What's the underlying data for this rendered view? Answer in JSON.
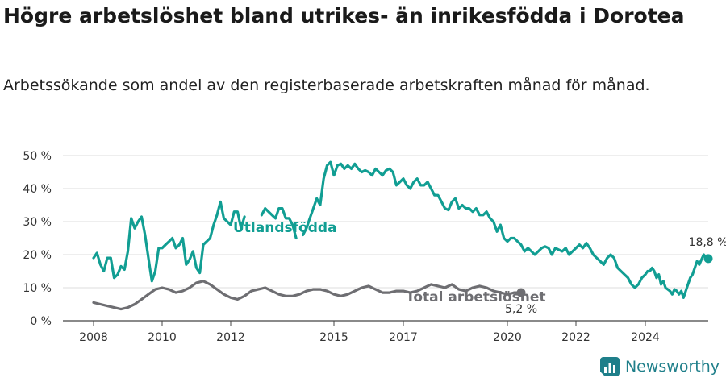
{
  "header": {
    "title": "Högre arbetslöshet bland utrikes- än inrikesfödda i Dorotea",
    "subtitle": "Arbetssökande som andel av den registerbaserade arbetskraften månad för månad."
  },
  "brand": {
    "name": "Newsworthy",
    "icon": "newsworthy-logo-icon",
    "color": "#1f7f8a"
  },
  "chart_data": {
    "type": "line",
    "title": "Högre arbetslöshet bland utrikes- än inrikesfödda i Dorotea",
    "subtitle": "Arbetssökande som andel av den registerbaserade arbetskraften månad för månad.",
    "xlabel": "",
    "ylabel": "",
    "xlim": [
      2007.6,
      2025.8
    ],
    "ylim": [
      0,
      50
    ],
    "x_ticks": [
      2008,
      2010,
      2012,
      2015,
      2017,
      2020,
      2022,
      2024
    ],
    "x_tick_labels": [
      "2008",
      "2010",
      "2012",
      "2015",
      "2017",
      "2020",
      "2022",
      "2024"
    ],
    "y_ticks": [
      0,
      10,
      20,
      30,
      40,
      50
    ],
    "y_tick_labels": [
      "0 %",
      "10 %",
      "20 %",
      "30 %",
      "40 %",
      "50 %"
    ],
    "grid": true,
    "series": [
      {
        "name": "Utlandsfödda",
        "color": "#119e93",
        "end_label": "18,8 %",
        "segments": [
          [
            [
              2008.0,
              19
            ],
            [
              2008.1,
              20.5
            ],
            [
              2008.2,
              17
            ],
            [
              2008.3,
              15
            ],
            [
              2008.4,
              19
            ],
            [
              2008.5,
              19
            ],
            [
              2008.6,
              13
            ],
            [
              2008.7,
              14
            ],
            [
              2008.8,
              16.5
            ],
            [
              2008.9,
              15.5
            ],
            [
              2009.0,
              21
            ],
            [
              2009.1,
              31
            ],
            [
              2009.2,
              28
            ],
            [
              2009.3,
              30
            ],
            [
              2009.4,
              31.5
            ],
            [
              2009.5,
              26
            ],
            [
              2009.6,
              19
            ],
            [
              2009.7,
              12
            ],
            [
              2009.8,
              15
            ],
            [
              2009.9,
              22
            ],
            [
              2010.0,
              22
            ],
            [
              2010.1,
              23
            ],
            [
              2010.2,
              24
            ],
            [
              2010.3,
              25
            ],
            [
              2010.4,
              22
            ],
            [
              2010.5,
              23
            ],
            [
              2010.6,
              25
            ],
            [
              2010.7,
              17
            ],
            [
              2010.8,
              18.5
            ],
            [
              2010.9,
              21
            ],
            [
              2011.0,
              16
            ],
            [
              2011.1,
              14.5
            ],
            [
              2011.2,
              23
            ],
            [
              2011.3,
              24
            ],
            [
              2011.4,
              25
            ],
            [
              2011.5,
              29
            ],
            [
              2011.6,
              32
            ],
            [
              2011.7,
              36
            ],
            [
              2011.8,
              31
            ],
            [
              2011.9,
              30
            ],
            [
              2012.0,
              29
            ],
            [
              2012.1,
              33
            ],
            [
              2012.2,
              33
            ],
            [
              2012.3,
              28
            ],
            [
              2012.4,
              31.5
            ]
          ],
          [
            [
              2012.9,
              32
            ],
            [
              2013.0,
              34
            ],
            [
              2013.1,
              33
            ],
            [
              2013.2,
              32
            ],
            [
              2013.3,
              31
            ],
            [
              2013.4,
              34
            ],
            [
              2013.5,
              34
            ],
            [
              2013.6,
              31
            ],
            [
              2013.7,
              31
            ],
            [
              2013.8,
              29
            ],
            [
              2013.9,
              25
            ]
          ],
          [
            [
              2014.1,
              26
            ],
            [
              2014.2,
              28
            ],
            [
              2014.3,
              31
            ],
            [
              2014.4,
              34
            ],
            [
              2014.5,
              37
            ],
            [
              2014.6,
              35
            ],
            [
              2014.7,
              43
            ],
            [
              2014.8,
              47
            ],
            [
              2014.9,
              48
            ],
            [
              2015.0,
              44
            ],
            [
              2015.1,
              47
            ],
            [
              2015.2,
              47.5
            ],
            [
              2015.3,
              46
            ],
            [
              2015.4,
              47
            ],
            [
              2015.5,
              46
            ],
            [
              2015.6,
              47.5
            ],
            [
              2015.7,
              46
            ],
            [
              2015.8,
              45
            ],
            [
              2015.9,
              45.5
            ],
            [
              2016.0,
              45
            ],
            [
              2016.1,
              44
            ],
            [
              2016.2,
              46
            ],
            [
              2016.3,
              45
            ],
            [
              2016.4,
              44
            ],
            [
              2016.5,
              45.5
            ],
            [
              2016.6,
              46
            ],
            [
              2016.7,
              45
            ],
            [
              2016.8,
              41
            ],
            [
              2016.9,
              42
            ],
            [
              2017.0,
              43
            ],
            [
              2017.1,
              41
            ],
            [
              2017.2,
              40
            ],
            [
              2017.3,
              42
            ],
            [
              2017.4,
              43
            ],
            [
              2017.5,
              41
            ],
            [
              2017.6,
              41
            ],
            [
              2017.7,
              42
            ],
            [
              2017.8,
              40
            ],
            [
              2017.9,
              38
            ],
            [
              2018.0,
              38
            ],
            [
              2018.1,
              36
            ],
            [
              2018.2,
              34
            ],
            [
              2018.3,
              33.5
            ],
            [
              2018.4,
              36
            ],
            [
              2018.5,
              37
            ],
            [
              2018.6,
              34
            ],
            [
              2018.7,
              35
            ],
            [
              2018.8,
              34
            ],
            [
              2018.9,
              34
            ],
            [
              2019.0,
              33
            ],
            [
              2019.1,
              34
            ],
            [
              2019.2,
              32
            ],
            [
              2019.3,
              32
            ],
            [
              2019.4,
              33
            ],
            [
              2019.5,
              31
            ],
            [
              2019.6,
              30
            ],
            [
              2019.7,
              27
            ],
            [
              2019.8,
              29
            ],
            [
              2019.9,
              25
            ],
            [
              2020.0,
              24
            ],
            [
              2020.1,
              25
            ],
            [
              2020.2,
              25
            ],
            [
              2020.3,
              24
            ],
            [
              2020.4,
              23
            ],
            [
              2020.5,
              21
            ],
            [
              2020.6,
              22
            ],
            [
              2020.7,
              21
            ],
            [
              2020.8,
              20
            ],
            [
              2020.9,
              21
            ],
            [
              2021.0,
              22
            ],
            [
              2021.1,
              22.5
            ],
            [
              2021.2,
              22
            ],
            [
              2021.3,
              20
            ],
            [
              2021.4,
              22
            ],
            [
              2021.5,
              21.5
            ],
            [
              2021.6,
              21
            ],
            [
              2021.7,
              22
            ],
            [
              2021.8,
              20
            ],
            [
              2021.9,
              21
            ],
            [
              2022.0,
              22
            ],
            [
              2022.1,
              23
            ],
            [
              2022.2,
              22
            ],
            [
              2022.3,
              23.5
            ],
            [
              2022.4,
              22
            ],
            [
              2022.5,
              20
            ],
            [
              2022.6,
              19
            ],
            [
              2022.7,
              18
            ],
            [
              2022.8,
              17
            ],
            [
              2022.9,
              19
            ],
            [
              2023.0,
              20
            ],
            [
              2023.1,
              19
            ],
            [
              2023.2,
              16
            ],
            [
              2023.3,
              15
            ],
            [
              2023.4,
              14
            ],
            [
              2023.5,
              13
            ],
            [
              2023.6,
              11
            ],
            [
              2023.7,
              10
            ],
            [
              2023.8,
              11
            ],
            [
              2023.9,
              13
            ],
            [
              2024.0,
              14
            ],
            [
              2024.1,
              15
            ],
            [
              2024.2,
              15
            ],
            [
              2024.3,
              16
            ],
            [
              2024.4,
              15
            ],
            [
              2024.5,
              13
            ],
            [
              2024.6,
              14
            ],
            [
              2024.7,
              11
            ],
            [
              2024.8,
              12
            ],
            [
              2024.9,
              10
            ],
            [
              2025.0,
              9.5
            ],
            [
              2025.1,
              9
            ],
            [
              2025.2,
              8
            ],
            [
              2025.3,
              9.5
            ],
            [
              2025.4,
              9
            ],
            [
              2025.5,
              8
            ],
            [
              2025.6,
              9
            ],
            [
              2025.7,
              7
            ],
            [
              2025.8,
              9
            ],
            [
              2025.9,
              11
            ],
            [
              2026.0,
              13
            ],
            [
              2026.1,
              14
            ],
            [
              2026.2,
              16
            ],
            [
              2026.3,
              18
            ],
            [
              2026.4,
              17
            ],
            [
              2026.5,
              18.5
            ],
            [
              2026.6,
              20
            ],
            [
              2026.7,
              19
            ],
            [
              2026.8,
              18.8
            ]
          ]
        ]
      },
      {
        "name": "Total arbetslöshet",
        "color": "#6e6e72",
        "end_label": "5,2 %",
        "segments": [
          [
            [
              2008.0,
              5.5
            ],
            [
              2008.2,
              5
            ],
            [
              2008.4,
              4.5
            ],
            [
              2008.6,
              4
            ],
            [
              2008.8,
              3.5
            ],
            [
              2009.0,
              4
            ],
            [
              2009.2,
              5
            ],
            [
              2009.4,
              6.5
            ],
            [
              2009.6,
              8
            ],
            [
              2009.8,
              9.5
            ],
            [
              2010.0,
              10
            ],
            [
              2010.2,
              9.5
            ],
            [
              2010.4,
              8.5
            ],
            [
              2010.6,
              9
            ],
            [
              2010.8,
              10
            ],
            [
              2011.0,
              11.5
            ],
            [
              2011.2,
              12
            ],
            [
              2011.4,
              11
            ],
            [
              2011.6,
              9.5
            ],
            [
              2011.8,
              8
            ],
            [
              2012.0,
              7
            ],
            [
              2012.2,
              6.5
            ],
            [
              2012.4,
              7.5
            ],
            [
              2012.6,
              9
            ],
            [
              2012.8,
              9.5
            ],
            [
              2013.0,
              10
            ],
            [
              2013.2,
              9
            ],
            [
              2013.4,
              8
            ],
            [
              2013.6,
              7.5
            ],
            [
              2013.8,
              7.5
            ],
            [
              2014.0,
              8
            ],
            [
              2014.2,
              9
            ],
            [
              2014.4,
              9.5
            ],
            [
              2014.6,
              9.5
            ],
            [
              2014.8,
              9
            ],
            [
              2015.0,
              8
            ],
            [
              2015.2,
              7.5
            ],
            [
              2015.4,
              8
            ],
            [
              2015.6,
              9
            ],
            [
              2015.8,
              10
            ],
            [
              2016.0,
              10.5
            ],
            [
              2016.2,
              9.5
            ],
            [
              2016.4,
              8.5
            ],
            [
              2016.6,
              8.5
            ],
            [
              2016.8,
              9
            ],
            [
              2017.0,
              9
            ],
            [
              2017.2,
              8.5
            ],
            [
              2017.4,
              9
            ],
            [
              2017.6,
              10
            ],
            [
              2017.8,
              11
            ],
            [
              2018.0,
              10.5
            ],
            [
              2018.2,
              10
            ],
            [
              2018.4,
              11
            ],
            [
              2018.6,
              9.5
            ],
            [
              2018.8,
              9
            ],
            [
              2019.0,
              10
            ],
            [
              2019.2,
              10.5
            ],
            [
              2019.4,
              10
            ],
            [
              2019.6,
              9
            ],
            [
              2019.8,
              8.5
            ],
            [
              2020.0,
              8
            ],
            [
              2020.2,
              8.5
            ],
            [
              2020.4,
              8.5
            ]
          ]
        ]
      }
    ]
  },
  "chart_end_dates": {
    "note_x_mapping": "decimal years on a linear time axis"
  }
}
